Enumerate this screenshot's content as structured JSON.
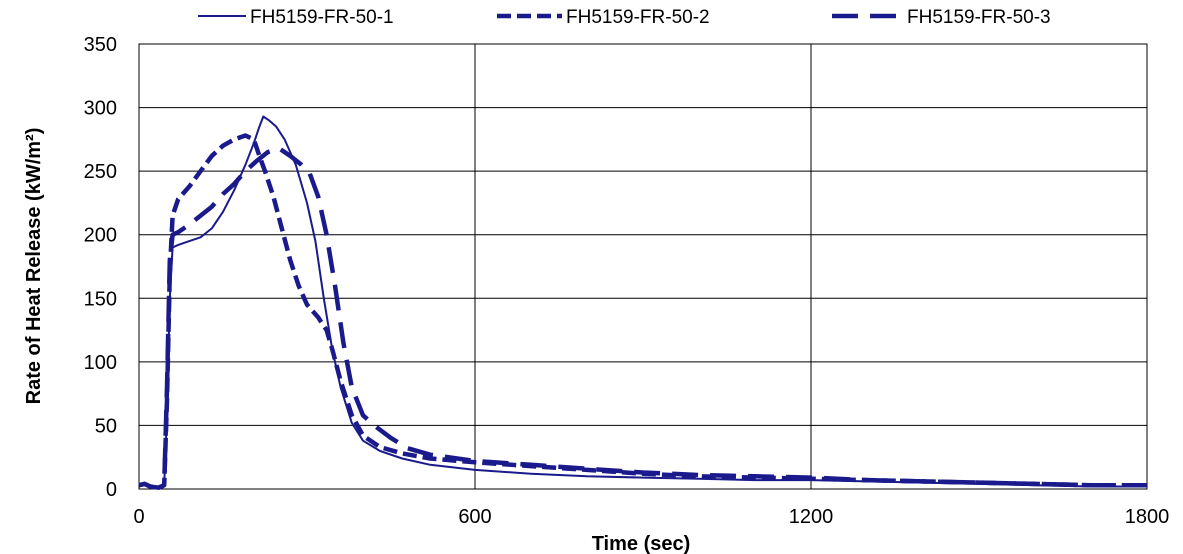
{
  "chart_data": {
    "type": "line",
    "title": "",
    "xlabel": "Time (sec)",
    "ylabel": "Rate of Heat Release (kW/m²)",
    "xlim": [
      0,
      1800
    ],
    "ylim": [
      0,
      350
    ],
    "xticks": [
      0,
      600,
      1200,
      1800
    ],
    "yticks": [
      0,
      50,
      100,
      150,
      200,
      250,
      300,
      350
    ],
    "grid": true,
    "legend": "top",
    "line_color": "#1a1a8c",
    "series": [
      {
        "name": "FH5159-FR-50-1",
        "style": "solid",
        "points": [
          [
            0,
            3
          ],
          [
            10,
            4
          ],
          [
            20,
            2
          ],
          [
            35,
            1
          ],
          [
            45,
            3
          ],
          [
            50,
            60
          ],
          [
            55,
            150
          ],
          [
            60,
            190
          ],
          [
            70,
            192
          ],
          [
            90,
            195
          ],
          [
            110,
            198
          ],
          [
            130,
            205
          ],
          [
            150,
            218
          ],
          [
            170,
            235
          ],
          [
            190,
            255
          ],
          [
            205,
            272
          ],
          [
            215,
            285
          ],
          [
            222,
            293
          ],
          [
            232,
            290
          ],
          [
            245,
            285
          ],
          [
            260,
            275
          ],
          [
            280,
            255
          ],
          [
            300,
            225
          ],
          [
            315,
            195
          ],
          [
            330,
            150
          ],
          [
            345,
            110
          ],
          [
            360,
            80
          ],
          [
            380,
            52
          ],
          [
            400,
            38
          ],
          [
            430,
            30
          ],
          [
            470,
            24
          ],
          [
            520,
            19
          ],
          [
            600,
            15
          ],
          [
            700,
            12
          ],
          [
            800,
            10
          ],
          [
            900,
            9
          ],
          [
            1000,
            8
          ],
          [
            1100,
            7
          ],
          [
            1200,
            7
          ],
          [
            1300,
            6
          ],
          [
            1400,
            5
          ],
          [
            1500,
            4
          ],
          [
            1600,
            3
          ],
          [
            1700,
            2
          ],
          [
            1800,
            2
          ]
        ]
      },
      {
        "name": "FH5159-FR-50-2",
        "style": "dash",
        "points": [
          [
            0,
            3
          ],
          [
            10,
            4
          ],
          [
            20,
            2
          ],
          [
            35,
            1
          ],
          [
            45,
            3
          ],
          [
            50,
            70
          ],
          [
            55,
            170
          ],
          [
            60,
            215
          ],
          [
            70,
            228
          ],
          [
            90,
            238
          ],
          [
            110,
            250
          ],
          [
            130,
            262
          ],
          [
            150,
            270
          ],
          [
            170,
            275
          ],
          [
            190,
            278
          ],
          [
            205,
            275
          ],
          [
            215,
            262
          ],
          [
            225,
            250
          ],
          [
            240,
            230
          ],
          [
            255,
            205
          ],
          [
            270,
            180
          ],
          [
            285,
            160
          ],
          [
            300,
            145
          ],
          [
            320,
            135
          ],
          [
            335,
            125
          ],
          [
            345,
            110
          ],
          [
            360,
            85
          ],
          [
            380,
            58
          ],
          [
            400,
            42
          ],
          [
            430,
            33
          ],
          [
            470,
            28
          ],
          [
            520,
            24
          ],
          [
            600,
            21
          ],
          [
            700,
            18
          ],
          [
            800,
            15
          ],
          [
            900,
            12
          ],
          [
            1000,
            10
          ],
          [
            1100,
            9
          ],
          [
            1200,
            8
          ],
          [
            1300,
            7
          ],
          [
            1400,
            6
          ],
          [
            1500,
            5
          ],
          [
            1600,
            4
          ],
          [
            1700,
            3
          ],
          [
            1800,
            3
          ]
        ]
      },
      {
        "name": "FH5159-FR-50-3",
        "style": "longdash",
        "points": [
          [
            0,
            3
          ],
          [
            10,
            4
          ],
          [
            20,
            2
          ],
          [
            35,
            1
          ],
          [
            45,
            3
          ],
          [
            50,
            80
          ],
          [
            55,
            180
          ],
          [
            60,
            200
          ],
          [
            70,
            202
          ],
          [
            90,
            208
          ],
          [
            110,
            215
          ],
          [
            130,
            222
          ],
          [
            150,
            232
          ],
          [
            170,
            240
          ],
          [
            190,
            250
          ],
          [
            210,
            258
          ],
          [
            230,
            265
          ],
          [
            250,
            268
          ],
          [
            270,
            262
          ],
          [
            290,
            255
          ],
          [
            305,
            248
          ],
          [
            320,
            230
          ],
          [
            335,
            200
          ],
          [
            350,
            160
          ],
          [
            365,
            115
          ],
          [
            380,
            80
          ],
          [
            400,
            58
          ],
          [
            420,
            50
          ],
          [
            450,
            40
          ],
          [
            480,
            32
          ],
          [
            520,
            27
          ],
          [
            600,
            22
          ],
          [
            700,
            19
          ],
          [
            800,
            16
          ],
          [
            900,
            13
          ],
          [
            1000,
            11
          ],
          [
            1100,
            10
          ],
          [
            1200,
            9
          ],
          [
            1300,
            7
          ],
          [
            1400,
            6
          ],
          [
            1500,
            5
          ],
          [
            1600,
            4
          ],
          [
            1700,
            3
          ],
          [
            1800,
            3
          ]
        ]
      }
    ]
  }
}
